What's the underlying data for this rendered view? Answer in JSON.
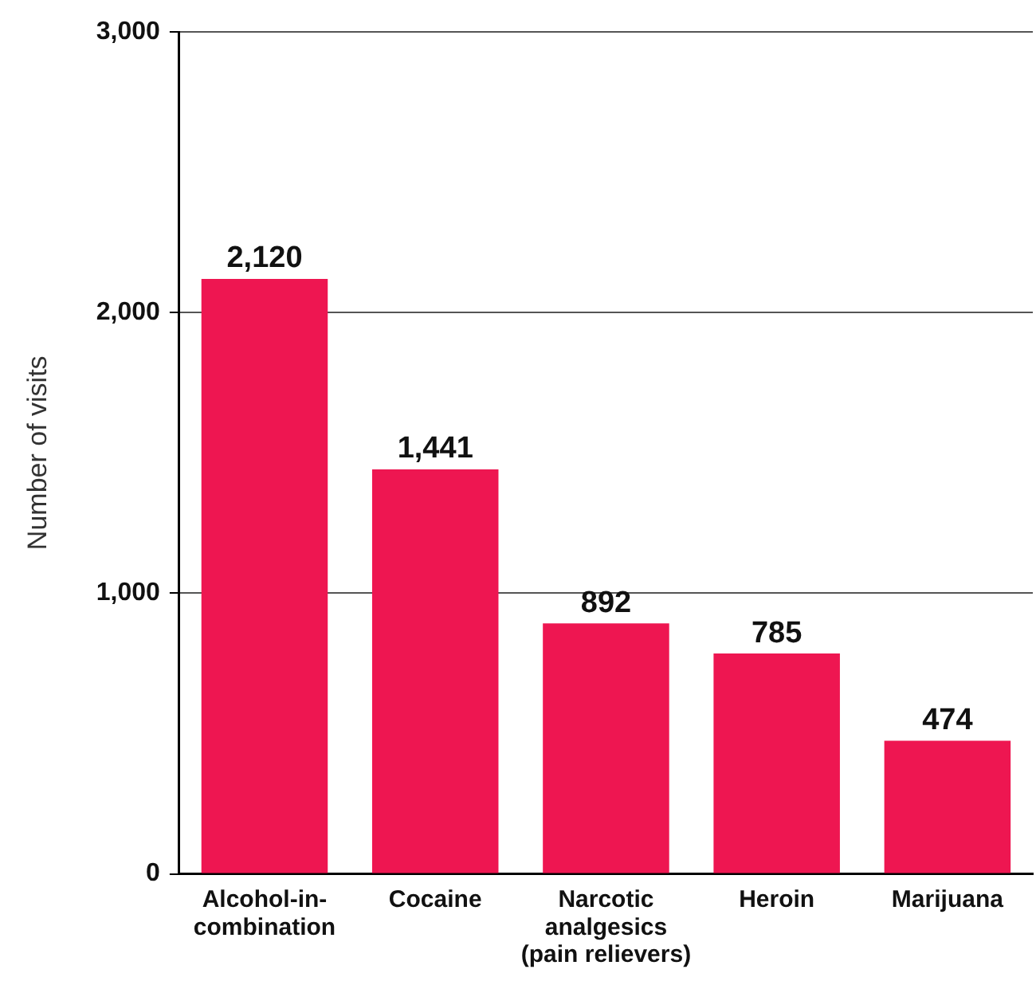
{
  "chart_data": {
    "type": "bar",
    "ylabel": "Number of visits",
    "categories": [
      "Alcohol-in-\ncombination",
      "Cocaine",
      "Narcotic\nanalgesics\n(pain relievers)",
      "Heroin",
      "Marijuana"
    ],
    "values": [
      2120,
      1441,
      892,
      785,
      474
    ],
    "value_labels": [
      "2,120",
      "1,441",
      "892",
      "785",
      "474"
    ],
    "color": "#ee1651",
    "ylim": [
      0,
      3000
    ],
    "yticks": [
      {
        "value": 0,
        "label": "0"
      },
      {
        "value": 1000,
        "label": "1,000"
      },
      {
        "value": 2000,
        "label": "2,000"
      },
      {
        "value": 3000,
        "label": "3,000"
      }
    ],
    "grid": "y",
    "legend": false
  }
}
